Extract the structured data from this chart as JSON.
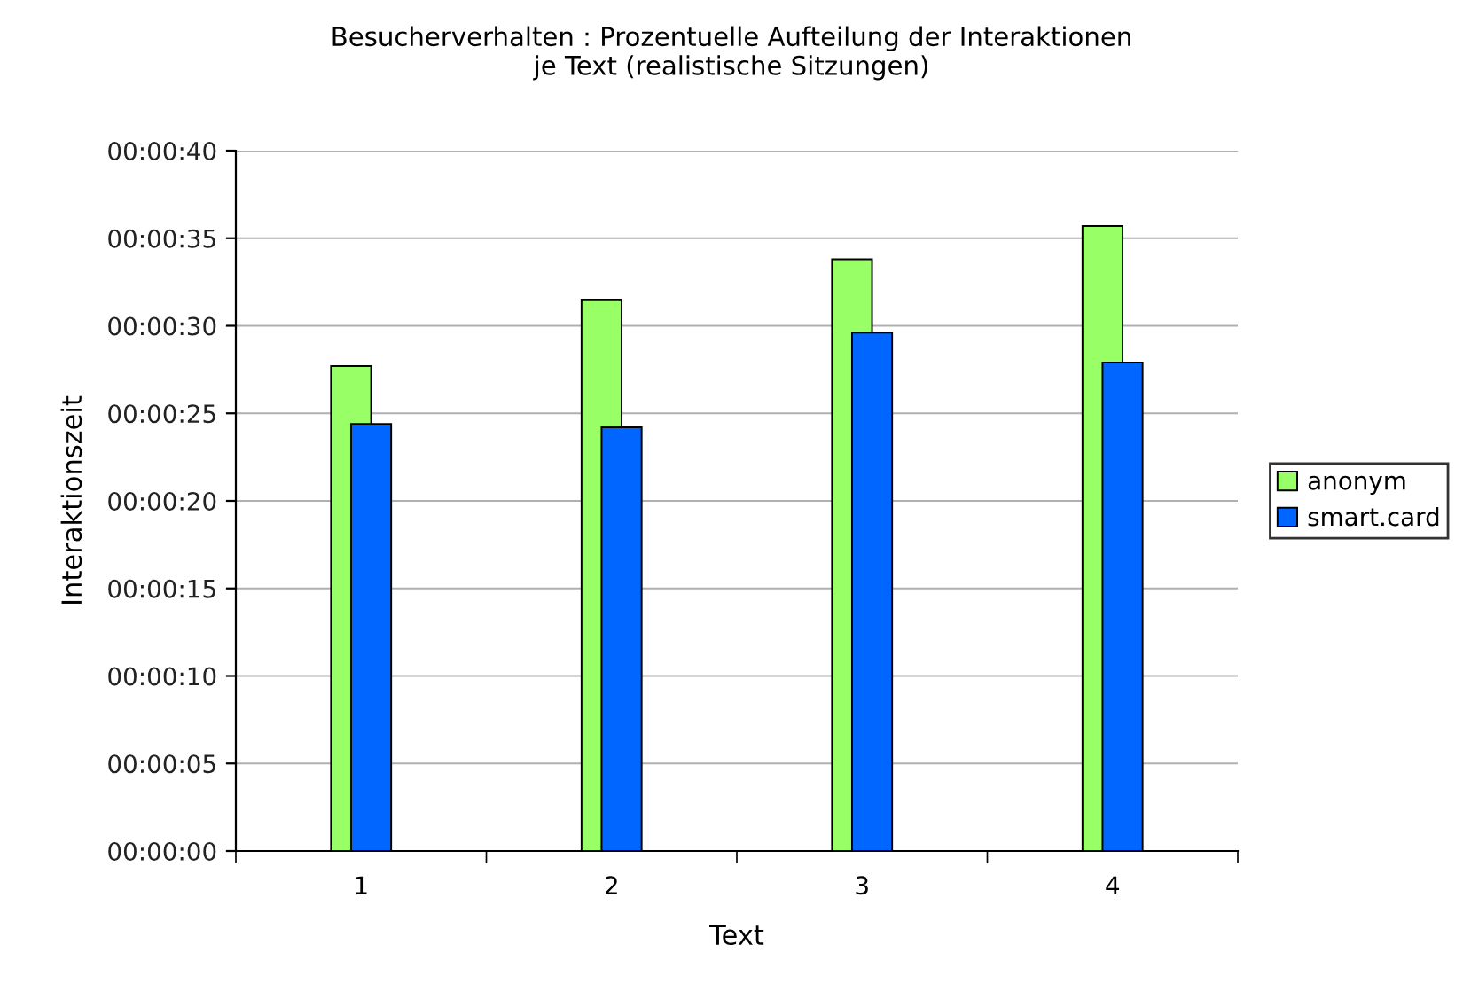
{
  "chart_data": {
    "type": "bar",
    "title": "Besucherverhalten : Prozentuelle Aufteilung der Interaktionen\nje Text (realistische Sitzungen)",
    "xlabel": "Text",
    "ylabel": "Interaktionszeit",
    "categories": [
      "1",
      "2",
      "3",
      "4"
    ],
    "series": [
      {
        "name": "anonym",
        "color": "#99ff66",
        "values": [
          27.7,
          31.5,
          33.8,
          35.7
        ]
      },
      {
        "name": "smart.card",
        "color": "#0066ff",
        "values": [
          24.4,
          24.2,
          29.6,
          27.9
        ]
      }
    ],
    "ylim": [
      0,
      40
    ],
    "yticks": [
      {
        "value": 0,
        "label": "00:00:00"
      },
      {
        "value": 5,
        "label": "00:00:05"
      },
      {
        "value": 10,
        "label": "00:00:10"
      },
      {
        "value": 15,
        "label": "00:00:15"
      },
      {
        "value": 20,
        "label": "00:00:20"
      },
      {
        "value": 25,
        "label": "00:00:25"
      },
      {
        "value": 30,
        "label": "00:00:30"
      },
      {
        "value": 35,
        "label": "00:00:35"
      },
      {
        "value": 40,
        "label": "00:00:40"
      }
    ],
    "grid": "y",
    "legend": "right"
  }
}
